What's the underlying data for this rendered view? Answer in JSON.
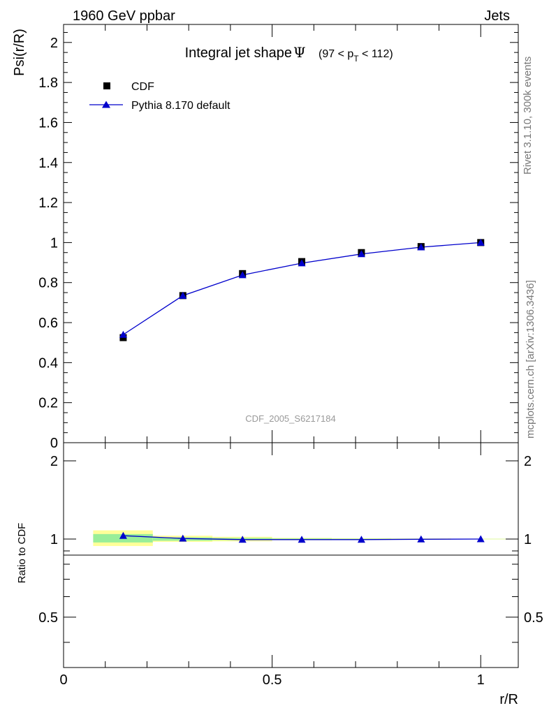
{
  "header": {
    "left": "1960 GeV ppbar",
    "right": "Jets"
  },
  "side_labels": {
    "rivet": "Rivet 3.1.10,  300k events",
    "mcplots": "mcplots.cern.ch [arXiv:1306.3436]"
  },
  "chart_data": [
    {
      "type": "scatter",
      "panel": "main",
      "title": "Integral jet shape",
      "title_symbol": "Ψ",
      "title_range_prefix": "(97 < p",
      "title_range_sub": "T",
      "title_range_suffix": " < 112)",
      "ylabel": "Psi(r/R)",
      "xlim": [
        0,
        1.09
      ],
      "ylim": [
        0,
        2.09
      ],
      "yticks": [
        0,
        0.2,
        0.4,
        0.6,
        0.8,
        1,
        1.2,
        1.4,
        1.6,
        1.8,
        2
      ],
      "ytick_labels": [
        "0",
        "0.2",
        "0.4",
        "0.6",
        "0.8",
        "1",
        "1.2",
        "1.4",
        "1.6",
        "1.8",
        "2"
      ],
      "watermark": "CDF_2005_S6217184",
      "x": [
        0.143,
        0.286,
        0.429,
        0.571,
        0.714,
        0.857,
        1.0
      ],
      "series": [
        {
          "name": "CDF",
          "marker": "square",
          "color": "#000000",
          "values": [
            0.525,
            0.735,
            0.845,
            0.905,
            0.95,
            0.98,
            1.0
          ]
        },
        {
          "name": "Pythia 8.170 default",
          "marker": "triangle",
          "color": "#0000cc",
          "line": true,
          "values": [
            0.54,
            0.735,
            0.838,
            0.897,
            0.943,
            0.977,
            1.0
          ]
        }
      ]
    },
    {
      "type": "line",
      "panel": "ratio",
      "ylabel": "Ratio to CDF",
      "xlabel": "r/R",
      "xlim": [
        0,
        1.09
      ],
      "ylim": [
        0.32,
        2.35
      ],
      "yticks": [
        0.5,
        1,
        2
      ],
      "ytick_labels": [
        "0.5",
        "1",
        "2"
      ],
      "xticks": [
        0,
        0.5,
        1
      ],
      "xtick_labels": [
        "0",
        "0.5",
        "1"
      ],
      "x": [
        0.143,
        0.286,
        0.429,
        0.571,
        0.714,
        0.857,
        1.0
      ],
      "ratio_values": [
        1.03,
        1.005,
        0.995,
        0.995,
        0.995,
        0.998,
        1.0
      ],
      "bins": [
        [
          0.071,
          0.214
        ],
        [
          0.214,
          0.357
        ],
        [
          0.357,
          0.5
        ],
        [
          0.5,
          0.643
        ],
        [
          0.643,
          0.786
        ],
        [
          0.786,
          0.929
        ],
        [
          0.929,
          1.071
        ]
      ],
      "band_yellow": [
        [
          0.94,
          1.08
        ],
        [
          0.975,
          1.03
        ],
        [
          0.98,
          1.02
        ],
        [
          0.99,
          1.01
        ],
        [
          0.993,
          1.007
        ],
        [
          0.995,
          1.005
        ],
        [
          0.997,
          1.003
        ]
      ],
      "band_green": [
        [
          0.97,
          1.045
        ],
        [
          0.985,
          1.015
        ],
        [
          0.99,
          1.01
        ],
        [
          0.995,
          1.005
        ],
        [
          0.997,
          1.003
        ],
        [
          0.998,
          1.002
        ],
        [
          0.999,
          1.001
        ]
      ],
      "color_yellow": "#ffff99",
      "color_green": "#99ee99",
      "color_line": "#0000cc"
    }
  ]
}
